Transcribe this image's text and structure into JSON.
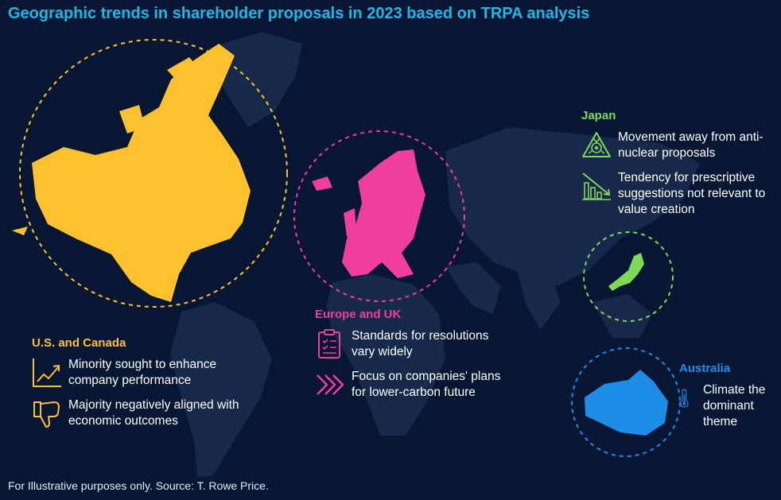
{
  "title": "Geographic trends in shareholder proposals in 2023 based on TRPA analysis",
  "colors": {
    "background": "#071633",
    "land": "#16294a",
    "us_canada": "#ffc22e",
    "europe": "#ef3e9c",
    "japan": "#7ed957",
    "australia": "#1e8de8",
    "title": "#1fb8e6"
  },
  "regions": {
    "us_canada": {
      "heading": "U.S. and Canada",
      "items": [
        {
          "icon": "trend-up-chart-icon",
          "text": "Minority sought to enhance company performance"
        },
        {
          "icon": "thumbs-down-icon",
          "text": "Majority negatively aligned with economic outcomes"
        }
      ]
    },
    "europe_uk": {
      "heading": "Europe and UK",
      "items": [
        {
          "icon": "clipboard-checklist-icon",
          "text": "Standards for resolutions vary widely"
        },
        {
          "icon": "fast-forward-arrows-icon",
          "text": "Focus on companies' plans for lower-carbon future"
        }
      ]
    },
    "japan": {
      "heading": "Japan",
      "items": [
        {
          "icon": "radiation-warning-icon",
          "text": "Movement away from anti-nuclear proposals"
        },
        {
          "icon": "declining-bar-chart-icon",
          "text": "Tendency for prescriptive suggestions not relevant to value creation"
        }
      ]
    },
    "australia": {
      "heading": "Australia",
      "items": [
        {
          "icon": "thermometer-icon",
          "text": "Climate the dominant theme"
        }
      ]
    }
  },
  "footer": "For Illustrative purposes only. Source: T. Rowe Price."
}
